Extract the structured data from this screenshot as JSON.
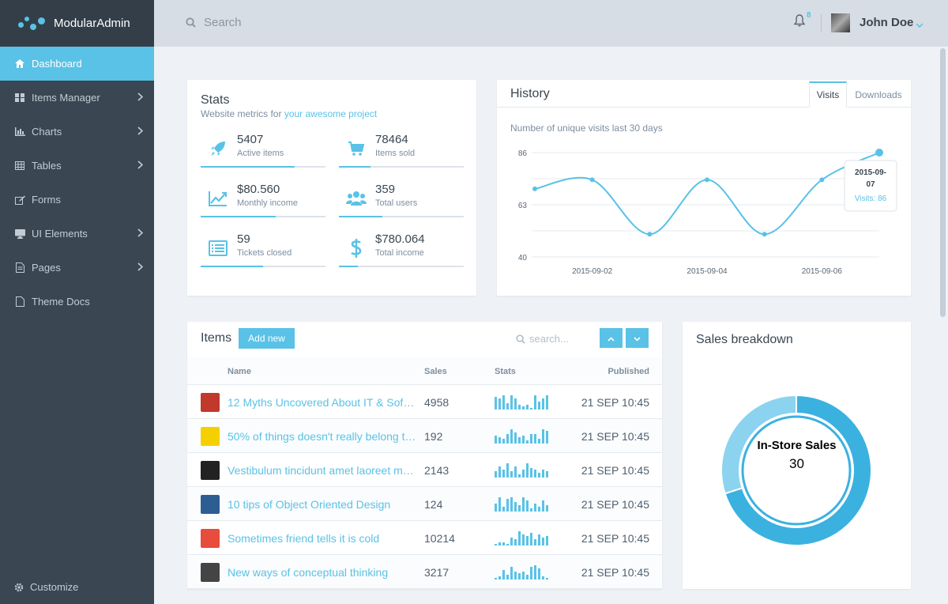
{
  "brand": {
    "name": "ModularAdmin"
  },
  "sidebar": {
    "items": [
      {
        "label": "Dashboard",
        "icon": "home-icon",
        "active": true,
        "has_children": false
      },
      {
        "label": "Items Manager",
        "icon": "grid-icon",
        "has_children": true
      },
      {
        "label": "Charts",
        "icon": "bar-chart-icon",
        "has_children": true
      },
      {
        "label": "Tables",
        "icon": "table-icon",
        "has_children": true
      },
      {
        "label": "Forms",
        "icon": "edit-icon",
        "has_children": false
      },
      {
        "label": "UI Elements",
        "icon": "desktop-icon",
        "has_children": true
      },
      {
        "label": "Pages",
        "icon": "file-icon",
        "has_children": true
      },
      {
        "label": "Theme Docs",
        "icon": "doc-icon",
        "has_children": false
      }
    ],
    "customize_label": "Customize"
  },
  "header": {
    "search_placeholder": "Search",
    "notifications_count": "8",
    "username": "John Doe"
  },
  "stats": {
    "title": "Stats",
    "subtitle_text": "Website metrics for ",
    "subtitle_link": "your awesome project",
    "metrics": [
      {
        "value": "5407",
        "label": "Active items",
        "icon": "rocket-icon",
        "progress": 0.75
      },
      {
        "value": "78464",
        "label": "Items sold",
        "icon": "cart-icon",
        "progress": 0.25
      },
      {
        "value": "$80.560",
        "label": "Monthly income",
        "icon": "line-chart-icon",
        "progress": 0.6
      },
      {
        "value": "359",
        "label": "Total users",
        "icon": "users-icon",
        "progress": 0.35
      },
      {
        "value": "59",
        "label": "Tickets closed",
        "icon": "list-alt-icon",
        "progress": 0.5
      },
      {
        "value": "$780.064",
        "label": "Total income",
        "icon": "dollar-icon",
        "progress": 0.15
      }
    ]
  },
  "history": {
    "title": "History",
    "tabs": [
      "Visits",
      "Downloads"
    ],
    "active_tab": "Visits",
    "description": "Number of unique visits last 30 days",
    "tooltip": {
      "date_line1": "2015-09-",
      "date_line2": "07",
      "visits_text": "Visits: 86"
    }
  },
  "chart_data": {
    "type": "line",
    "x": [
      "2015-09-01",
      "2015-09-02",
      "2015-09-03",
      "2015-09-04",
      "2015-09-05",
      "2015-09-06",
      "2015-09-07"
    ],
    "values": [
      70,
      74,
      50,
      74,
      50,
      74,
      86
    ],
    "y_ticks": [
      40,
      63,
      86
    ],
    "x_tick_labels": [
      "2015-09-02",
      "2015-09-04",
      "2015-09-06"
    ],
    "ylim": [
      40,
      86
    ],
    "grid": true,
    "color": "#59c2e6"
  },
  "items": {
    "title": "Items",
    "add_label": "Add new",
    "search_placeholder": "search...",
    "columns": {
      "name": "Name",
      "sales": "Sales",
      "stats": "Stats",
      "published": "Published"
    },
    "rows": [
      {
        "name": "12 Myths Uncovered About IT & Software",
        "sales": "4958",
        "published": "21 SEP 10:45",
        "thumb": "#c0392b",
        "bars": [
          8,
          7,
          9,
          4,
          9,
          7,
          3,
          2,
          3,
          1,
          9,
          5,
          7,
          9
        ]
      },
      {
        "name": "50% of things doesn't really belong to you",
        "sales": "192",
        "published": "21 SEP 10:45",
        "thumb": "#f5d000",
        "bars": [
          5,
          4,
          3,
          6,
          9,
          7,
          4,
          5,
          2,
          6,
          6,
          3,
          9,
          8
        ]
      },
      {
        "name": "Vestibulum tincidunt amet laoreet mauris",
        "sales": "2143",
        "published": "21 SEP 10:45",
        "thumb": "#222222",
        "bars": [
          4,
          7,
          5,
          9,
          4,
          7,
          2,
          5,
          9,
          6,
          5,
          3,
          5,
          4
        ]
      },
      {
        "name": "10 tips of Object Oriented Design",
        "sales": "124",
        "published": "21 SEP 10:45",
        "thumb": "#2c5e94",
        "bars": [
          5,
          9,
          3,
          8,
          9,
          6,
          4,
          9,
          7,
          2,
          5,
          3,
          7,
          4
        ]
      },
      {
        "name": "Sometimes friend tells it is cold",
        "sales": "10214",
        "published": "21 SEP 10:45",
        "thumb": "#e74c3c",
        "bars": [
          1,
          2,
          2,
          1,
          5,
          4,
          9,
          7,
          6,
          8,
          4,
          7,
          5,
          6
        ]
      },
      {
        "name": "New ways of conceptual thinking",
        "sales": "3217",
        "published": "21 SEP 10:45",
        "thumb": "#444444",
        "bars": [
          1,
          2,
          6,
          3,
          8,
          5,
          4,
          5,
          3,
          8,
          9,
          7,
          2,
          1
        ]
      }
    ]
  },
  "sales_breakdown": {
    "title": "Sales breakdown",
    "selected_label": "In-Store Sales",
    "selected_value": "30",
    "segments": [
      {
        "value": 70,
        "color": "#3bb1e0"
      },
      {
        "value": 30,
        "color": "#8bd3ef"
      }
    ]
  }
}
